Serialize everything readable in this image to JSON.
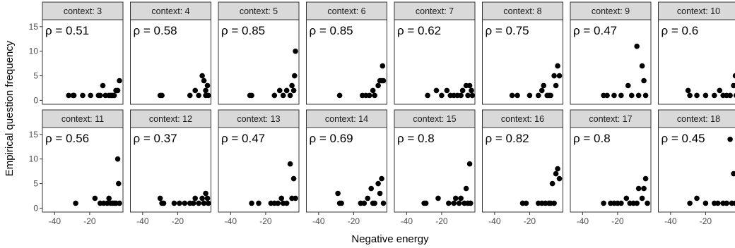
{
  "chart_data": {
    "type": "scatter",
    "xlabel": "Negative energy",
    "ylabel": "Empirical question frequency",
    "xlim": [
      -47,
      -1
    ],
    "ylim": [
      -0.8,
      16.4
    ],
    "x_ticks": [
      -40,
      -20
    ],
    "x_tick_labels": [
      "-40",
      "-20"
    ],
    "y_ticks": [
      0,
      5,
      10,
      15
    ],
    "y_tick_labels": [
      "0",
      "5",
      "10",
      "15"
    ],
    "grid": false,
    "facet_prefix": "context: ",
    "facets": [
      {
        "label": "context: 3",
        "rho": "ρ = 0.51",
        "points": [
          [
            -32,
            1
          ],
          [
            -29.5,
            1
          ],
          [
            -29,
            1
          ],
          [
            -24,
            1
          ],
          [
            -19.5,
            1
          ],
          [
            -15,
            1
          ],
          [
            -14,
            1
          ],
          [
            -12.5,
            3
          ],
          [
            -11,
            1
          ],
          [
            -9,
            1
          ],
          [
            -8,
            1
          ],
          [
            -7,
            1
          ],
          [
            -6,
            1
          ],
          [
            -5,
            2
          ],
          [
            -4,
            2
          ],
          [
            -3,
            4
          ]
        ]
      },
      {
        "label": "context: 4",
        "rho": "ρ = 0.58",
        "points": [
          [
            -30,
            1
          ],
          [
            -29,
            1
          ],
          [
            -13,
            1
          ],
          [
            -10,
            2
          ],
          [
            -8,
            1
          ],
          [
            -6,
            5
          ],
          [
            -5,
            4
          ],
          [
            -4,
            2
          ],
          [
            -3,
            3
          ],
          [
            -2.5,
            1
          ],
          [
            -4,
            1
          ]
        ]
      },
      {
        "label": "context: 5",
        "rho": "ρ = 0.85",
        "points": [
          [
            -29,
            1
          ],
          [
            -28,
            1
          ],
          [
            -15,
            1
          ],
          [
            -12,
            2
          ],
          [
            -10,
            1
          ],
          [
            -8,
            2
          ],
          [
            -6,
            1
          ],
          [
            -5,
            3
          ],
          [
            -4,
            2
          ],
          [
            -3.5,
            5
          ],
          [
            -3,
            10
          ]
        ]
      },
      {
        "label": "context: 6",
        "rho": "ρ = 0.85",
        "points": [
          [
            -28,
            1
          ],
          [
            -15,
            1
          ],
          [
            -13,
            1
          ],
          [
            -11,
            1
          ],
          [
            -9,
            2
          ],
          [
            -8,
            1
          ],
          [
            -6,
            3
          ],
          [
            -5,
            4
          ],
          [
            -4,
            4
          ],
          [
            -3.5,
            7
          ],
          [
            -3,
            4
          ]
        ]
      },
      {
        "label": "context: 7",
        "rho": "ρ = 0.62",
        "points": [
          [
            -28,
            1
          ],
          [
            -23,
            2
          ],
          [
            -20,
            1
          ],
          [
            -17,
            2
          ],
          [
            -15,
            1
          ],
          [
            -13,
            1
          ],
          [
            -11,
            1
          ],
          [
            -9,
            1
          ],
          [
            -8,
            2
          ],
          [
            -6,
            3
          ],
          [
            -5,
            1
          ],
          [
            -4,
            3
          ],
          [
            -3,
            2
          ],
          [
            -2.5,
            1
          ]
        ]
      },
      {
        "label": "context: 8",
        "rho": "ρ = 0.75",
        "points": [
          [
            -30,
            1
          ],
          [
            -27,
            1
          ],
          [
            -20,
            1
          ],
          [
            -15,
            1
          ],
          [
            -13,
            2
          ],
          [
            -12,
            3
          ],
          [
            -10,
            1
          ],
          [
            -9,
            1
          ],
          [
            -8,
            1
          ],
          [
            -6,
            5
          ],
          [
            -5,
            3
          ],
          [
            -4,
            7
          ],
          [
            -3,
            5
          ]
        ]
      },
      {
        "label": "context: 9",
        "rho": "ρ = 0.47",
        "points": [
          [
            -28,
            1
          ],
          [
            -26,
            1
          ],
          [
            -22,
            1
          ],
          [
            -18,
            1
          ],
          [
            -14,
            3
          ],
          [
            -12,
            1
          ],
          [
            -9,
            11
          ],
          [
            -8,
            1
          ],
          [
            -6,
            7
          ],
          [
            -5,
            4
          ],
          [
            -4,
            1
          ]
        ]
      },
      {
        "label": "context: 10",
        "rho": "ρ = 0.6",
        "points": [
          [
            -30,
            2
          ],
          [
            -29,
            1
          ],
          [
            -25,
            1
          ],
          [
            -20,
            1
          ],
          [
            -15,
            1
          ],
          [
            -12,
            2
          ],
          [
            -10,
            1
          ],
          [
            -8,
            1
          ],
          [
            -6,
            1
          ],
          [
            -4,
            3
          ],
          [
            -3,
            5
          ],
          [
            -2.5,
            1
          ]
        ]
      },
      {
        "label": "context: 11",
        "rho": "ρ = 0.56",
        "points": [
          [
            -28,
            1
          ],
          [
            -17,
            2
          ],
          [
            -14,
            1
          ],
          [
            -12,
            1
          ],
          [
            -10,
            1
          ],
          [
            -9,
            2
          ],
          [
            -8,
            1
          ],
          [
            -7,
            1
          ],
          [
            -6,
            1
          ],
          [
            -5,
            1
          ],
          [
            -4,
            10
          ],
          [
            -3.5,
            5
          ],
          [
            -3,
            1
          ]
        ]
      },
      {
        "label": "context: 12",
        "rho": "ρ = 0.37",
        "points": [
          [
            -30,
            2
          ],
          [
            -29,
            1
          ],
          [
            -28,
            1
          ],
          [
            -22,
            1
          ],
          [
            -19,
            1
          ],
          [
            -16,
            1
          ],
          [
            -13,
            1
          ],
          [
            -11,
            1
          ],
          [
            -10,
            2
          ],
          [
            -8,
            1
          ],
          [
            -6,
            2
          ],
          [
            -5,
            1
          ],
          [
            -4,
            3
          ],
          [
            -3,
            2
          ],
          [
            -2.5,
            1
          ]
        ]
      },
      {
        "label": "context: 13",
        "rho": "ρ = 0.47",
        "points": [
          [
            -28,
            1
          ],
          [
            -24,
            1
          ],
          [
            -17,
            1
          ],
          [
            -15,
            1
          ],
          [
            -13,
            1
          ],
          [
            -11,
            2
          ],
          [
            -10,
            1
          ],
          [
            -8,
            1
          ],
          [
            -6,
            9
          ],
          [
            -5,
            2
          ],
          [
            -4,
            6
          ],
          [
            -3,
            2
          ]
        ]
      },
      {
        "label": "context: 14",
        "rho": "ρ = 0.69",
        "points": [
          [
            -29,
            3
          ],
          [
            -28,
            1
          ],
          [
            -27,
            1
          ],
          [
            -16,
            1
          ],
          [
            -14,
            1
          ],
          [
            -12,
            2
          ],
          [
            -10,
            4
          ],
          [
            -9,
            1
          ],
          [
            -8,
            1
          ],
          [
            -6,
            5
          ],
          [
            -5,
            3
          ],
          [
            -4,
            6
          ],
          [
            -3,
            1
          ]
        ]
      },
      {
        "label": "context: 15",
        "rho": "ρ = 0.8",
        "points": [
          [
            -30,
            1
          ],
          [
            -29,
            1
          ],
          [
            -22,
            2
          ],
          [
            -16,
            1
          ],
          [
            -13,
            1
          ],
          [
            -12,
            2
          ],
          [
            -10,
            1
          ],
          [
            -9,
            2
          ],
          [
            -7,
            1
          ],
          [
            -6,
            4
          ],
          [
            -5,
            1
          ],
          [
            -4,
            9
          ],
          [
            -3.5,
            1
          ]
        ]
      },
      {
        "label": "context: 16",
        "rho": "ρ = 0.82",
        "points": [
          [
            -24,
            1
          ],
          [
            -22,
            1
          ],
          [
            -15,
            1
          ],
          [
            -13,
            1
          ],
          [
            -11,
            1
          ],
          [
            -9,
            1
          ],
          [
            -8,
            1
          ],
          [
            -7,
            5
          ],
          [
            -6,
            1
          ],
          [
            -5,
            7
          ],
          [
            -4,
            8
          ],
          [
            -3,
            6
          ]
        ]
      },
      {
        "label": "context: 17",
        "rho": "ρ = 0.8",
        "points": [
          [
            -28,
            1
          ],
          [
            -24,
            1
          ],
          [
            -22,
            1
          ],
          [
            -20,
            1
          ],
          [
            -18,
            1
          ],
          [
            -15,
            2
          ],
          [
            -13,
            1
          ],
          [
            -11,
            1
          ],
          [
            -9,
            1
          ],
          [
            -8,
            4
          ],
          [
            -6,
            2
          ],
          [
            -5,
            4
          ],
          [
            -4,
            6
          ],
          [
            -3,
            1
          ]
        ]
      },
      {
        "label": "context: 18",
        "rho": "ρ = 0.45",
        "points": [
          [
            -29,
            1
          ],
          [
            -25,
            2
          ],
          [
            -20,
            1
          ],
          [
            -15,
            1
          ],
          [
            -13,
            1
          ],
          [
            -10,
            1
          ],
          [
            -8,
            1
          ],
          [
            -6,
            14
          ],
          [
            -5,
            1
          ],
          [
            -4,
            7
          ],
          [
            -3,
            1
          ]
        ]
      }
    ]
  }
}
